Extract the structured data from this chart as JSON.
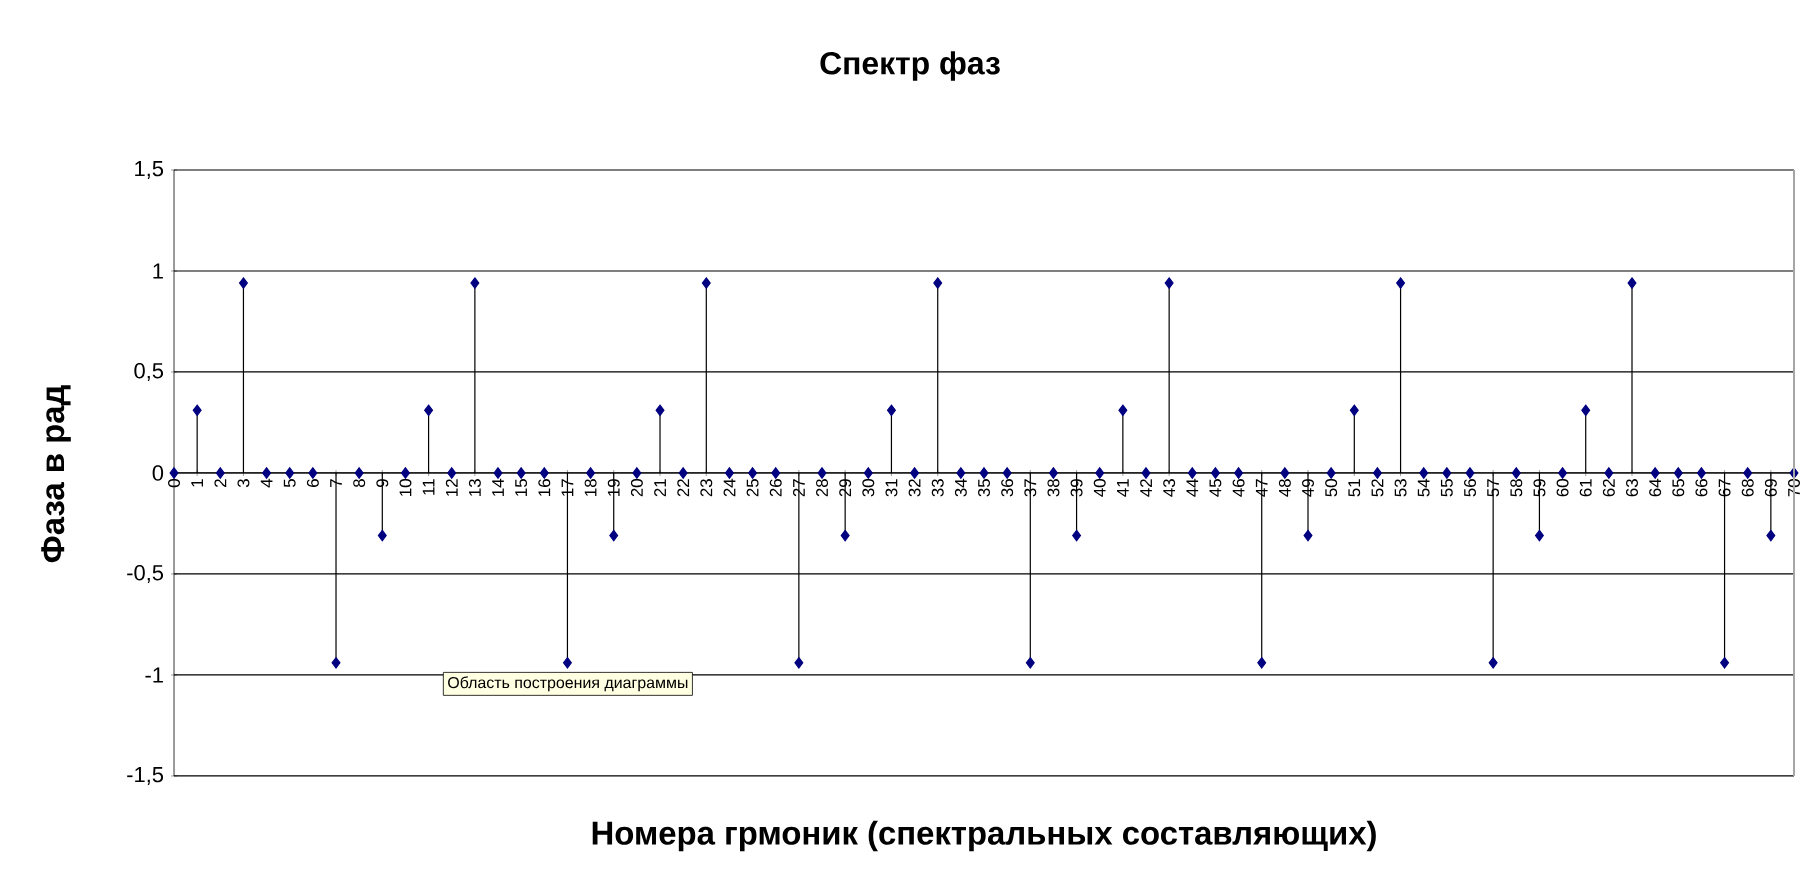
{
  "chart_data": {
    "type": "lollipop",
    "title": "Спектр фаз",
    "xlabel": "Номера грмоник (спектральных составляющих)",
    "ylabel": "Фаза в рад",
    "categories": [
      "0",
      "1",
      "2",
      "3",
      "4",
      "5",
      "6",
      "7",
      "8",
      "9",
      "10",
      "11",
      "12",
      "13",
      "14",
      "15",
      "16",
      "17",
      "18",
      "19",
      "20",
      "21",
      "22",
      "23",
      "24",
      "25",
      "26",
      "27",
      "28",
      "29",
      "30",
      "31",
      "32",
      "33",
      "34",
      "35",
      "36",
      "37",
      "38",
      "39",
      "40",
      "41",
      "42",
      "43",
      "44",
      "45",
      "46",
      "47",
      "48",
      "49",
      "50",
      "51",
      "52",
      "53",
      "54",
      "55",
      "56",
      "57",
      "58",
      "59",
      "60",
      "61",
      "62",
      "63",
      "64",
      "65",
      "66",
      "67",
      "68",
      "69",
      "70"
    ],
    "values": [
      0,
      0.31,
      0,
      0.94,
      0,
      0,
      0,
      -0.94,
      0,
      -0.31,
      0,
      0.31,
      0,
      0.94,
      0,
      0,
      0,
      -0.94,
      0,
      -0.31,
      0,
      0.31,
      0,
      0.94,
      0,
      0,
      0,
      -0.94,
      0,
      -0.31,
      0,
      0.31,
      0,
      0.94,
      0,
      0,
      0,
      -0.94,
      0,
      -0.31,
      0,
      0.31,
      0,
      0.94,
      0,
      0,
      0,
      -0.94,
      0,
      -0.31,
      0,
      0.31,
      0,
      0.94,
      0,
      0,
      0,
      -0.94,
      0,
      -0.31,
      0,
      0.31,
      0,
      0.94,
      0,
      0,
      0,
      -0.94,
      0,
      -0.31,
      0
    ],
    "color": "#000080",
    "marker": "diamond",
    "grid": "y",
    "ylim": [
      -1.5,
      1.5
    ],
    "yticks": [
      {
        "value": -1.5,
        "label": "-1,5"
      },
      -1,
      {
        "value": -0.5,
        "label": "-0,5"
      },
      0,
      {
        "value": 0.5,
        "label": "0,5"
      },
      1,
      {
        "value": 1.5,
        "label": "1,5"
      }
    ],
    "annotations": [
      "Область построения диаграммы"
    ]
  }
}
